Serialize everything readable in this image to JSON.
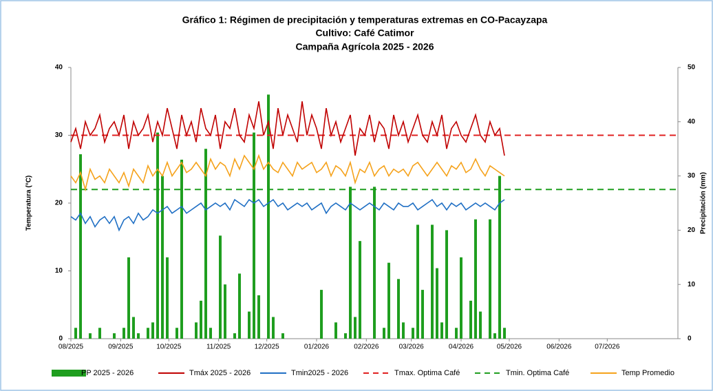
{
  "chart_data": {
    "type": "bar-line",
    "title": [
      "Gráfico 1:  Régimen de precipitación y temperaturas extremas en CO-Pacayzapa",
      "Cultivo: Café Catimor",
      "Campaña Agrícola 2025 - 2026"
    ],
    "y_label": "Temperatura (°C)",
    "y2_label": "Precipitación (mm)",
    "x": [
      0,
      3,
      6,
      9,
      12,
      15,
      18,
      21,
      24,
      27,
      30,
      33,
      36,
      39,
      42,
      45,
      48,
      51,
      54,
      57,
      60,
      63,
      66,
      69,
      72,
      75,
      78,
      81,
      84,
      87,
      90,
      93,
      96,
      99,
      102,
      105,
      108,
      111,
      114,
      117,
      120,
      123,
      126,
      129,
      132,
      135,
      138,
      141,
      144,
      147,
      150,
      153,
      156,
      159,
      162,
      165,
      168,
      171,
      174,
      177,
      180,
      183,
      186,
      189,
      192,
      195,
      198,
      201,
      204,
      207,
      210,
      213,
      216,
      219,
      222,
      225,
      228,
      231,
      234,
      237,
      240,
      243,
      246,
      249,
      252,
      255,
      258,
      261,
      264,
      267,
      270
    ],
    "xlim": [
      0,
      378
    ],
    "xticks": [
      {
        "value": 0,
        "label": "08/2025"
      },
      {
        "value": 31,
        "label": "09/2025"
      },
      {
        "value": 61,
        "label": "10/2025"
      },
      {
        "value": 92,
        "label": "11/2025"
      },
      {
        "value": 122,
        "label": "12/2025"
      },
      {
        "value": 153,
        "label": "01/2026"
      },
      {
        "value": 184,
        "label": "02/2026"
      },
      {
        "value": 212,
        "label": "03/2026"
      },
      {
        "value": 243,
        "label": "04/2026"
      },
      {
        "value": 273,
        "label": "05/2026"
      },
      {
        "value": 304,
        "label": "06/2026"
      },
      {
        "value": 334,
        "label": "07/2026"
      }
    ],
    "ylim": [
      0,
      40
    ],
    "yticks": [
      0,
      10,
      20,
      30,
      40
    ],
    "y2lim": [
      0,
      50
    ],
    "y2ticks": [
      0,
      10,
      20,
      30,
      40,
      50
    ],
    "series": [
      {
        "name": "PP 2025 - 2026",
        "type": "bar",
        "axis": "y2",
        "color": "#1f9e1f",
        "values": [
          0,
          2,
          34,
          0,
          1,
          0,
          2,
          0,
          0,
          1,
          0,
          2,
          15,
          4,
          1,
          0,
          2,
          3,
          38,
          30,
          15,
          0,
          2,
          33,
          0,
          0,
          3,
          7,
          35,
          2,
          0,
          19,
          10,
          0,
          1,
          12,
          0,
          5,
          38,
          8,
          0,
          45,
          4,
          0,
          1,
          0,
          0,
          0,
          0,
          0,
          0,
          0,
          9,
          0,
          0,
          3,
          0,
          1,
          28,
          4,
          18,
          0,
          0,
          28,
          0,
          2,
          14,
          0,
          11,
          3,
          0,
          2,
          21,
          9,
          0,
          21,
          13,
          3,
          20,
          0,
          2,
          15,
          0,
          7,
          22,
          5,
          0,
          22,
          1,
          30,
          2
        ]
      },
      {
        "name": "Tmáx 2025 - 2026",
        "type": "line",
        "color": "#c00000",
        "values": [
          29,
          31,
          28,
          32,
          30,
          31,
          33,
          29,
          31,
          32,
          30,
          33,
          28,
          32,
          30,
          31,
          33,
          29,
          32,
          30,
          34,
          31,
          28,
          33,
          30,
          32,
          29,
          34,
          31,
          30,
          33,
          28,
          32,
          31,
          34,
          30,
          29,
          33,
          31,
          35,
          30,
          32,
          28,
          34,
          30,
          33,
          31,
          29,
          35,
          30,
          33,
          31,
          28,
          34,
          30,
          32,
          29,
          31,
          33,
          27,
          31,
          30,
          33,
          29,
          32,
          31,
          28,
          33,
          30,
          32,
          29,
          31,
          33,
          30,
          29,
          32,
          30,
          33,
          28,
          31,
          32,
          30,
          29,
          31,
          33,
          30,
          29,
          32,
          30,
          31,
          27
        ]
      },
      {
        "name": "Tmin2025 - 2026",
        "type": "line",
        "color": "#1f6fc4",
        "values": [
          18,
          17.5,
          18.5,
          17,
          18,
          16.5,
          17.5,
          18,
          17,
          18,
          16,
          17.5,
          18,
          17,
          18.5,
          17.5,
          18,
          19,
          18.5,
          19,
          19.5,
          18.5,
          19,
          19.5,
          18.5,
          19,
          19.5,
          20,
          19,
          19.5,
          20,
          19.5,
          20,
          19,
          20.5,
          20,
          19.5,
          20.5,
          20,
          20.5,
          19.5,
          20,
          20.5,
          19.5,
          20,
          19,
          19.5,
          20,
          19.5,
          20,
          19,
          19.5,
          20,
          18.5,
          19.5,
          20,
          19.5,
          19,
          20,
          19.5,
          19,
          19.5,
          20,
          19.5,
          19,
          20,
          19.5,
          19,
          20,
          19.5,
          19.5,
          20,
          19,
          19.5,
          20,
          20.5,
          19.5,
          20,
          19,
          20,
          19.5,
          20,
          19,
          19.5,
          20,
          19.5,
          20,
          19.5,
          19,
          20,
          20.5
        ]
      },
      {
        "name": "Temp Promedio",
        "type": "line",
        "color": "#f5a21b",
        "values": [
          24,
          23,
          24.5,
          22,
          25,
          23.5,
          24,
          23,
          25,
          24,
          23,
          24.5,
          22.5,
          25,
          24,
          23,
          25.5,
          24,
          25,
          24,
          26,
          24,
          25,
          26,
          24.5,
          25,
          26,
          25,
          24,
          26.5,
          25,
          26,
          25.5,
          24,
          26.5,
          25,
          27,
          26,
          25,
          27,
          25,
          26,
          25,
          24.5,
          26,
          25,
          24,
          26,
          25,
          25.5,
          26,
          24.5,
          25,
          26,
          24,
          25.5,
          25,
          24,
          26,
          23,
          25,
          24.5,
          26,
          24,
          25,
          25.5,
          24,
          25,
          24.5,
          25,
          24,
          25.5,
          26,
          25,
          24,
          25,
          26,
          25,
          24,
          25.5,
          25,
          26,
          24.5,
          25,
          26.5,
          25,
          24,
          25.5,
          25,
          24.5,
          24
        ]
      }
    ],
    "reference_lines": [
      {
        "name": "Tmax. Optima Café",
        "value": 30,
        "color": "#e02020"
      },
      {
        "name": "Tmin. Optima Café",
        "value": 22,
        "color": "#1f9e1f"
      }
    ]
  }
}
